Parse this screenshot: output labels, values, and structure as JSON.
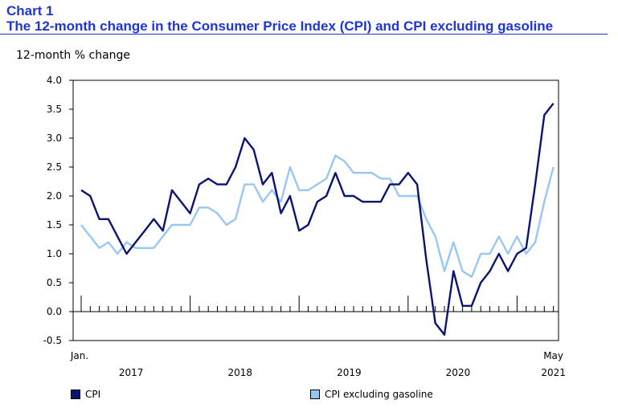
{
  "header": {
    "chart_number": "Chart 1",
    "title": "The 12-month change in the Consumer Price Index (CPI) and CPI excluding gasoline"
  },
  "colors": {
    "title": "#1f35d6",
    "cpi": "#0b1470",
    "cpi_ex_gas": "#99c7f4"
  },
  "chart_data": {
    "type": "line",
    "title": "The 12-month change in the Consumer Price Index (CPI) and CPI excluding gasoline",
    "ylabel": "12-month % change",
    "ylim": [
      -0.5,
      4.0
    ],
    "yticks": [
      -0.5,
      0.0,
      0.5,
      1.0,
      1.5,
      2.0,
      2.5,
      3.0,
      3.5,
      4.0
    ],
    "ytick_labels": [
      "-0.5",
      "0.0",
      "0.5",
      "1.0",
      "1.5",
      "2.0",
      "2.5",
      "3.0",
      "3.5",
      "4.0"
    ],
    "x_start_label": "Jan.",
    "x_end_label": "May",
    "year_labels": [
      "2017",
      "2018",
      "2019",
      "2020",
      "2021"
    ],
    "grid": false,
    "legend_position": "bottom",
    "x": [
      "2017-01",
      "2017-02",
      "2017-03",
      "2017-04",
      "2017-05",
      "2017-06",
      "2017-07",
      "2017-08",
      "2017-09",
      "2017-10",
      "2017-11",
      "2017-12",
      "2018-01",
      "2018-02",
      "2018-03",
      "2018-04",
      "2018-05",
      "2018-06",
      "2018-07",
      "2018-08",
      "2018-09",
      "2018-10",
      "2018-11",
      "2018-12",
      "2019-01",
      "2019-02",
      "2019-03",
      "2019-04",
      "2019-05",
      "2019-06",
      "2019-07",
      "2019-08",
      "2019-09",
      "2019-10",
      "2019-11",
      "2019-12",
      "2020-01",
      "2020-02",
      "2020-03",
      "2020-04",
      "2020-05",
      "2020-06",
      "2020-07",
      "2020-08",
      "2020-09",
      "2020-10",
      "2020-11",
      "2020-12",
      "2021-01",
      "2021-02",
      "2021-03",
      "2021-04",
      "2021-05"
    ],
    "series": [
      {
        "name": "CPI",
        "values": [
          2.1,
          2.0,
          1.6,
          1.6,
          1.3,
          1.0,
          1.2,
          1.4,
          1.6,
          1.4,
          2.1,
          1.9,
          1.7,
          2.2,
          2.3,
          2.2,
          2.2,
          2.5,
          3.0,
          2.8,
          2.2,
          2.4,
          1.7,
          2.0,
          1.4,
          1.5,
          1.9,
          2.0,
          2.4,
          2.0,
          2.0,
          1.9,
          1.9,
          1.9,
          2.2,
          2.2,
          2.4,
          2.2,
          0.9,
          -0.2,
          -0.4,
          0.7,
          0.1,
          0.1,
          0.5,
          0.7,
          1.0,
          0.7,
          1.0,
          1.1,
          2.2,
          3.4,
          3.6
        ]
      },
      {
        "name": "CPI excluding gasoline",
        "values": [
          1.5,
          1.3,
          1.1,
          1.2,
          1.0,
          1.2,
          1.1,
          1.1,
          1.1,
          1.3,
          1.5,
          1.5,
          1.5,
          1.8,
          1.8,
          1.7,
          1.5,
          1.6,
          2.2,
          2.2,
          1.9,
          2.1,
          1.9,
          2.5,
          2.1,
          2.1,
          2.2,
          2.3,
          2.7,
          2.6,
          2.4,
          2.4,
          2.4,
          2.3,
          2.3,
          2.0,
          2.0,
          2.0,
          1.6,
          1.3,
          0.7,
          1.2,
          0.7,
          0.6,
          1.0,
          1.0,
          1.3,
          1.0,
          1.3,
          1.0,
          1.2,
          1.9,
          2.5
        ]
      }
    ]
  },
  "legend": {
    "items": [
      "CPI",
      "CPI excluding gasoline"
    ]
  }
}
